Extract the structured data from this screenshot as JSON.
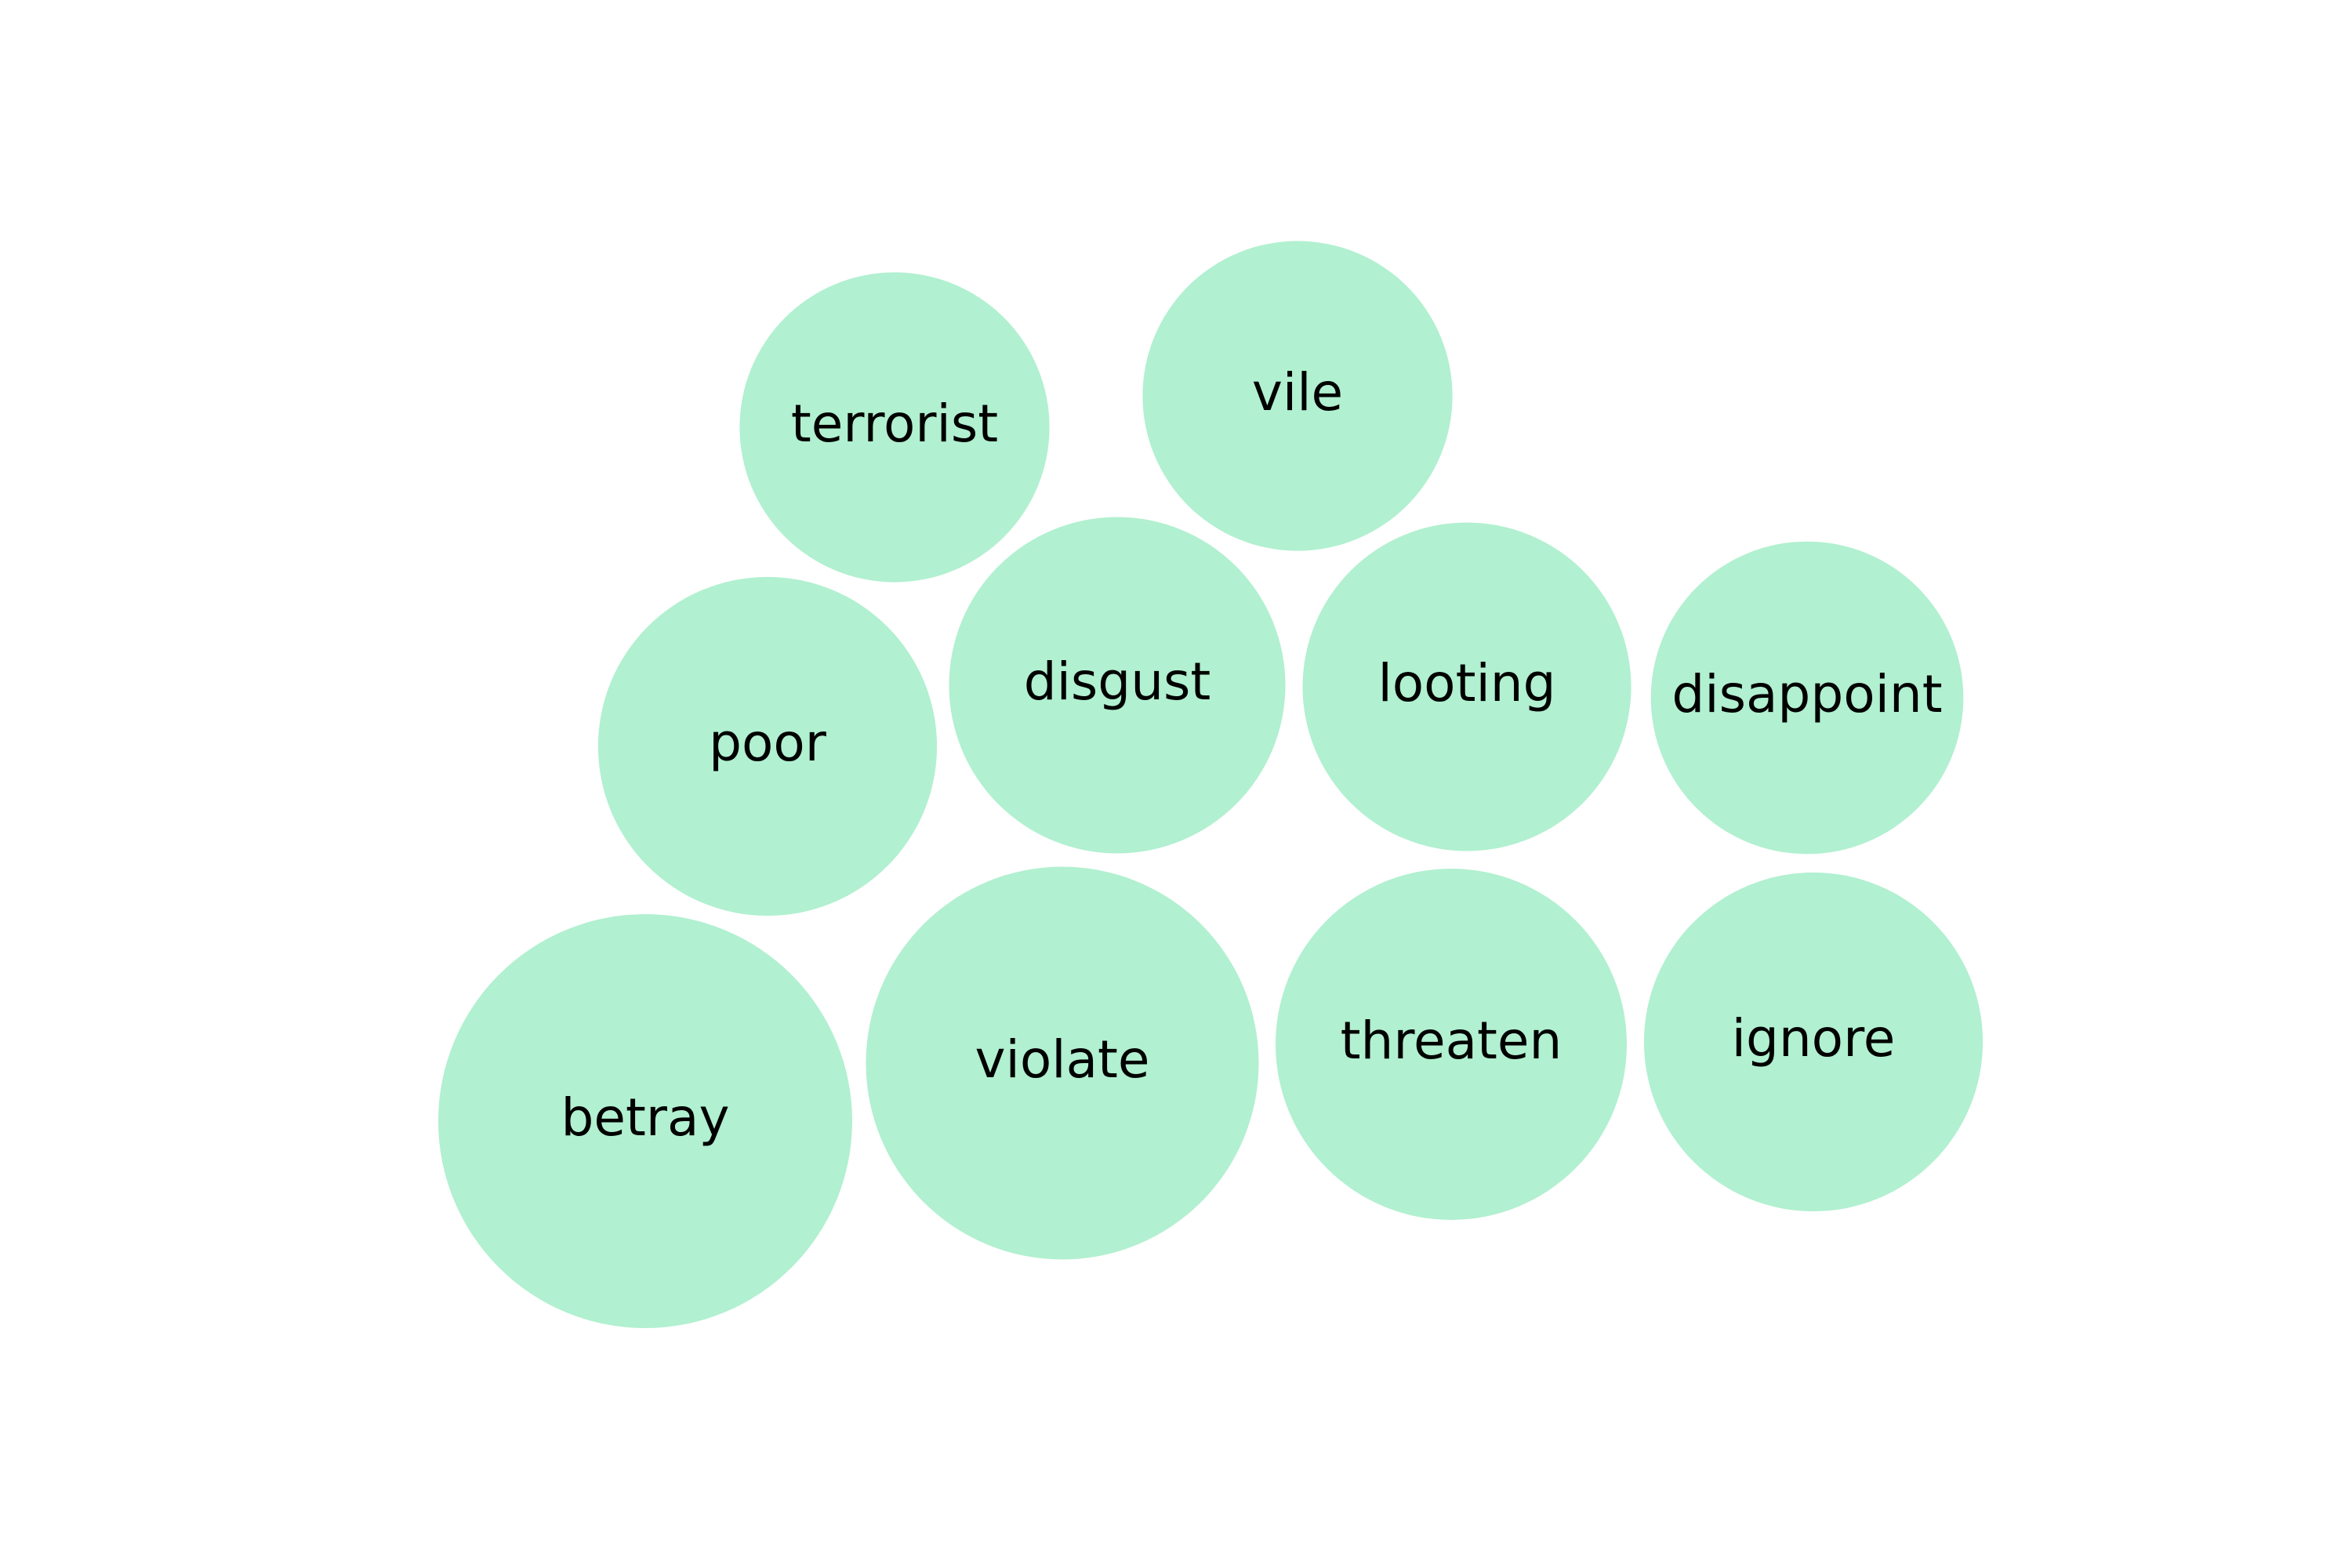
{
  "chart_data": {
    "type": "bubble",
    "title": "",
    "bubble_color": "#b1f0d0",
    "text_color": "#000000",
    "bubbles": [
      {
        "label": "betray",
        "value": 1.0
      },
      {
        "label": "violate",
        "value": 0.9
      },
      {
        "label": "threaten",
        "value": 0.72
      },
      {
        "label": "ignore",
        "value": 0.67
      },
      {
        "label": "poor",
        "value": 0.67
      },
      {
        "label": "disgust",
        "value": 0.66
      },
      {
        "label": "looting",
        "value": 0.63
      },
      {
        "label": "disappoint",
        "value": 0.57
      },
      {
        "label": "terrorist",
        "value": 0.56
      },
      {
        "label": "vile",
        "value": 0.56
      }
    ]
  }
}
